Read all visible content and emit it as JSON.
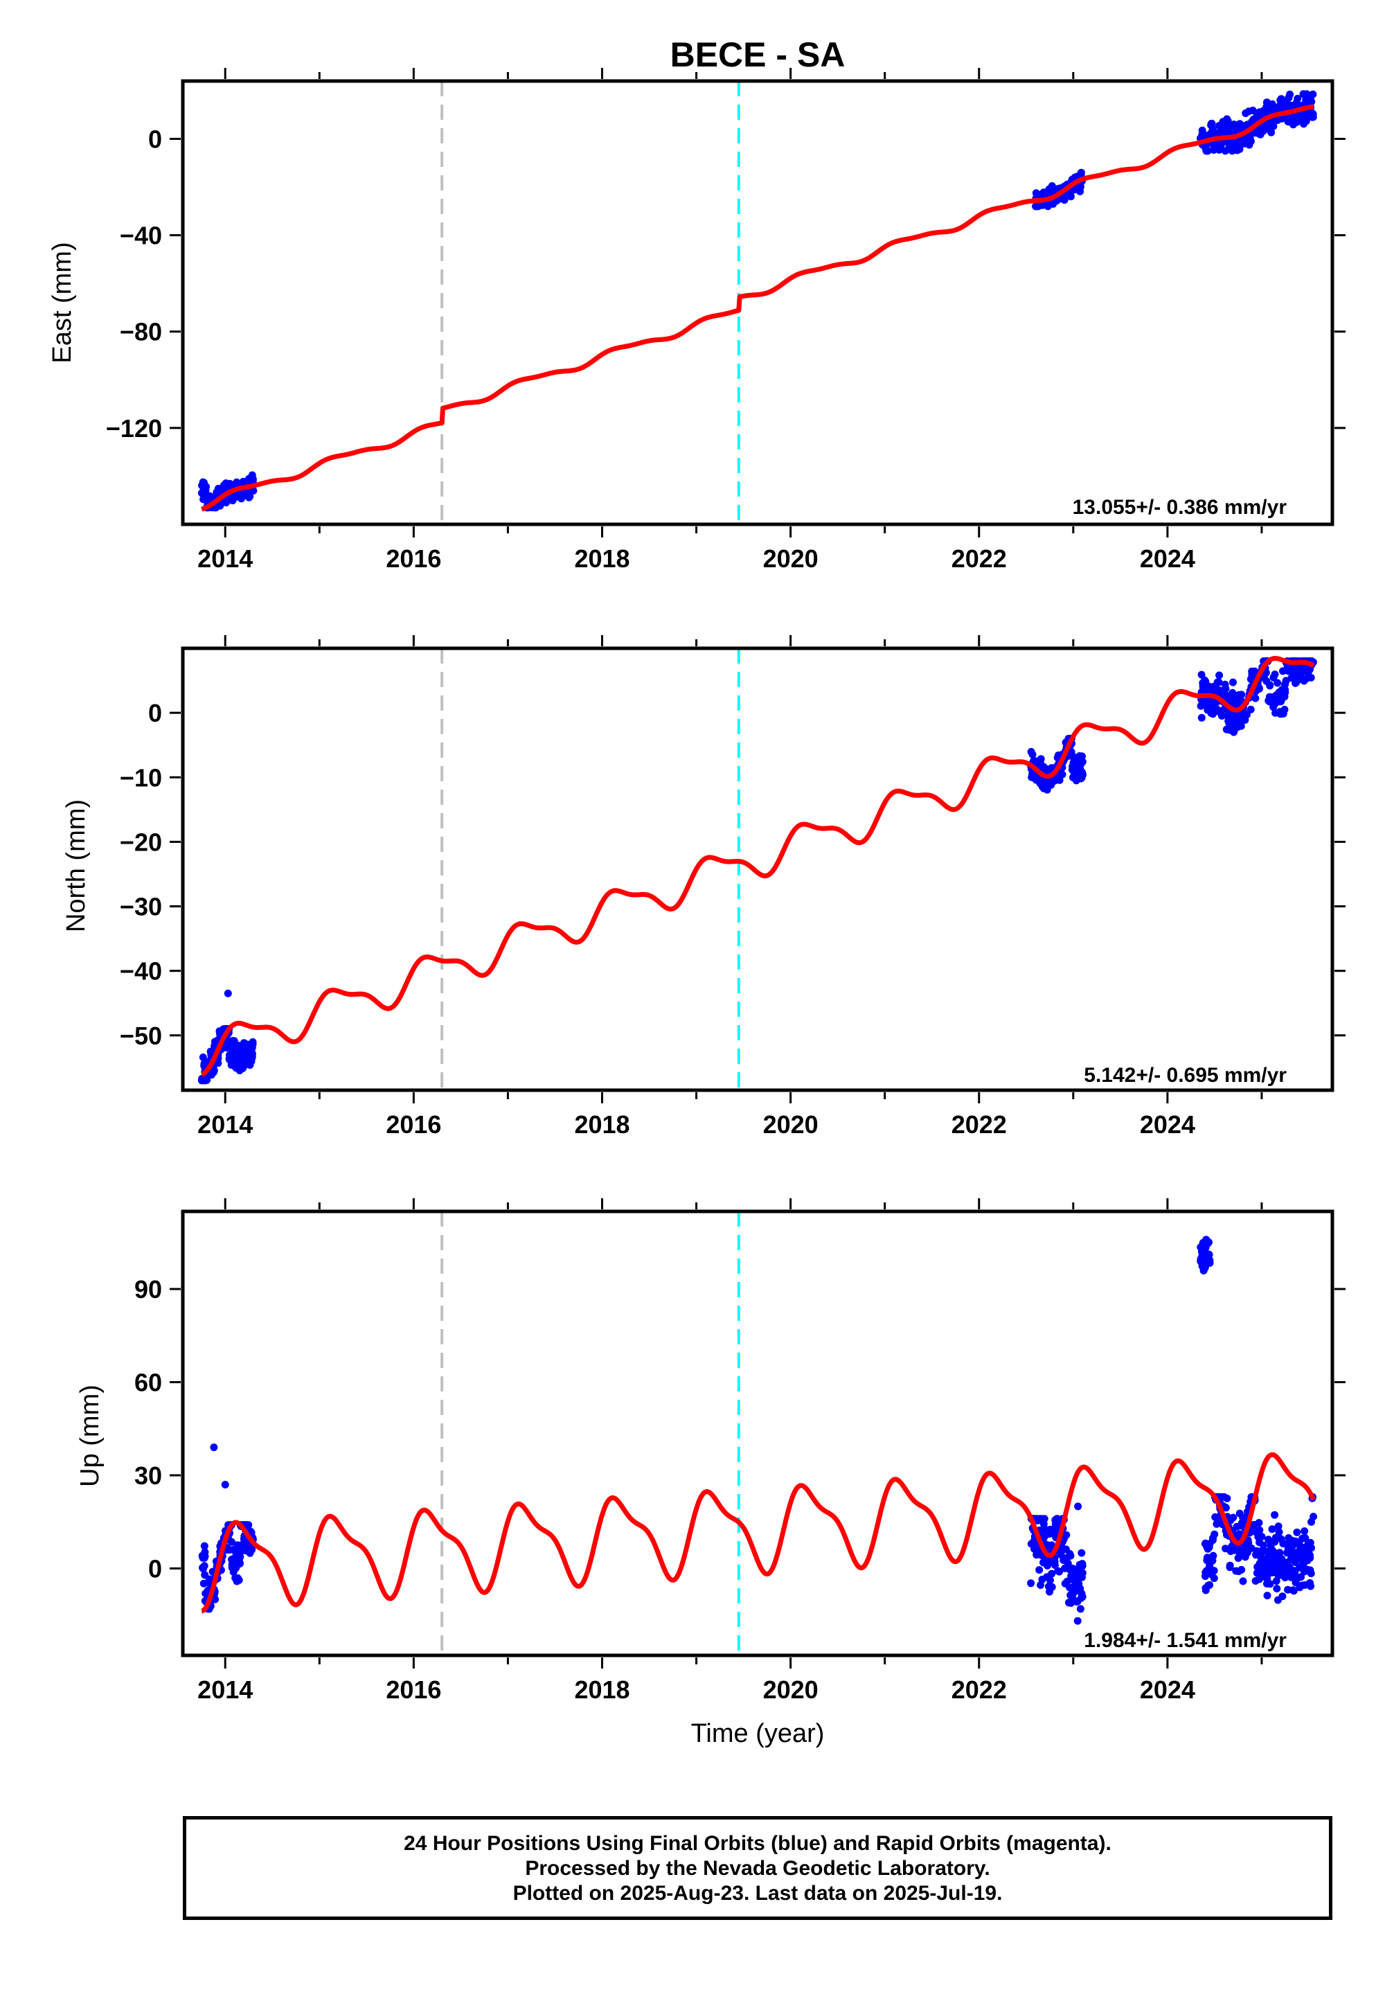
{
  "title": "BECE - SA",
  "xlabel": "Time (year)",
  "footer": [
    "24 Hour Positions Using Final Orbits (blue) and Rapid Orbits (magenta).",
    "Processed by the Nevada Geodetic Laboratory.",
    "Plotted on 2025-Aug-23. Last data on 2025-Jul-19."
  ],
  "colors": {
    "data": "#0000ff",
    "model": "#ff0000",
    "equipment_change": "#c0c0c0",
    "earthquake": "#00ffff"
  },
  "chart_data": [
    {
      "type": "scatter",
      "panel": "east",
      "ylabel": "East (mm)",
      "rate_text": "13.055+/- 0.386 mm/yr",
      "xlim": [
        2013.55,
        2025.75
      ],
      "ylim": [
        -160,
        24
      ],
      "xticks": [
        2014,
        2016,
        2018,
        2020,
        2022,
        2024
      ],
      "yticks": [
        0,
        -40,
        -80,
        -120
      ],
      "ytick_labels": [
        "0",
        "−40",
        "−80",
        "−120"
      ],
      "vertical_lines": [
        {
          "x": 2016.3,
          "kind": "equipment_change"
        },
        {
          "x": 2019.45,
          "kind": "earthquake"
        }
      ],
      "data_clusters": [
        {
          "x_range": [
            2013.75,
            2014.3
          ],
          "y_range": [
            -153,
            -138
          ]
        },
        {
          "x_range": [
            2022.6,
            2023.1
          ],
          "y_range": [
            -28,
            -14
          ]
        },
        {
          "x_range": [
            2024.35,
            2025.55
          ],
          "y_range": [
            -5,
            19
          ]
        }
      ],
      "model": {
        "series_labels": [],
        "rate": 13.055,
        "y_at_2014": -148.6,
        "annual_amplitude": 1.5,
        "offsets": [
          {
            "x": 2016.3,
            "dy": 6.0
          },
          {
            "x": 2019.45,
            "dy": 5.5
          }
        ]
      }
    },
    {
      "type": "scatter",
      "panel": "north",
      "ylabel": "North (mm)",
      "rate_text": "5.142+/- 0.695 mm/yr",
      "xlim": [
        2013.55,
        2025.75
      ],
      "ylim": [
        -58.5,
        10
      ],
      "xticks": [
        2014,
        2016,
        2018,
        2020,
        2022,
        2024
      ],
      "yticks": [
        0,
        -10,
        -20,
        -30,
        -40,
        -50
      ],
      "ytick_labels": [
        "0",
        "−10",
        "−20",
        "−30",
        "−40",
        "−50"
      ],
      "vertical_lines": [
        {
          "x": 2016.3,
          "kind": "equipment_change"
        },
        {
          "x": 2019.45,
          "kind": "earthquake"
        }
      ],
      "data_clusters": [
        {
          "x_range": [
            2013.75,
            2014.3
          ],
          "y_range": [
            -57,
            -49
          ]
        },
        {
          "x_range": [
            2022.55,
            2023.1
          ],
          "y_range": [
            -13,
            -4
          ]
        },
        {
          "x_range": [
            2024.35,
            2025.55
          ],
          "y_range": [
            -3,
            8
          ]
        }
      ],
      "outliers": [
        {
          "x": 2014.03,
          "y": -43.5
        }
      ],
      "model": {
        "rate": 5.142,
        "y_at_2014": -51.5,
        "annual_amplitude": 2.6,
        "offsets": []
      }
    },
    {
      "type": "scatter",
      "panel": "up",
      "ylabel": "Up (mm)",
      "rate_text": "1.984+/- 1.541 mm/yr",
      "xlim": [
        2013.55,
        2025.75
      ],
      "ylim": [
        -28,
        115
      ],
      "xticks": [
        2014,
        2016,
        2018,
        2020,
        2022,
        2024
      ],
      "yticks": [
        0,
        30,
        60,
        90
      ],
      "ytick_labels": [
        "0",
        "30",
        "60",
        "90"
      ],
      "vertical_lines": [
        {
          "x": 2016.3,
          "kind": "equipment_change"
        },
        {
          "x": 2019.45,
          "kind": "earthquake"
        }
      ],
      "data_clusters": [
        {
          "x_range": [
            2013.75,
            2014.3
          ],
          "y_range": [
            -13,
            14
          ]
        },
        {
          "x_range": [
            2022.55,
            2023.1
          ],
          "y_range": [
            -24,
            16
          ]
        },
        {
          "x_range": [
            2024.35,
            2024.45
          ],
          "y_range": [
            90,
            111
          ]
        },
        {
          "x_range": [
            2024.4,
            2025.55
          ],
          "y_range": [
            -17,
            23
          ]
        }
      ],
      "outliers": [
        {
          "x": 2013.88,
          "y": 39
        },
        {
          "x": 2014.0,
          "y": 27
        },
        {
          "x": 2023.05,
          "y": 20
        }
      ],
      "model": {
        "rate": 1.984,
        "y_at_2014": 2.0,
        "annual_amplitude": 12.0,
        "offsets": []
      }
    }
  ]
}
